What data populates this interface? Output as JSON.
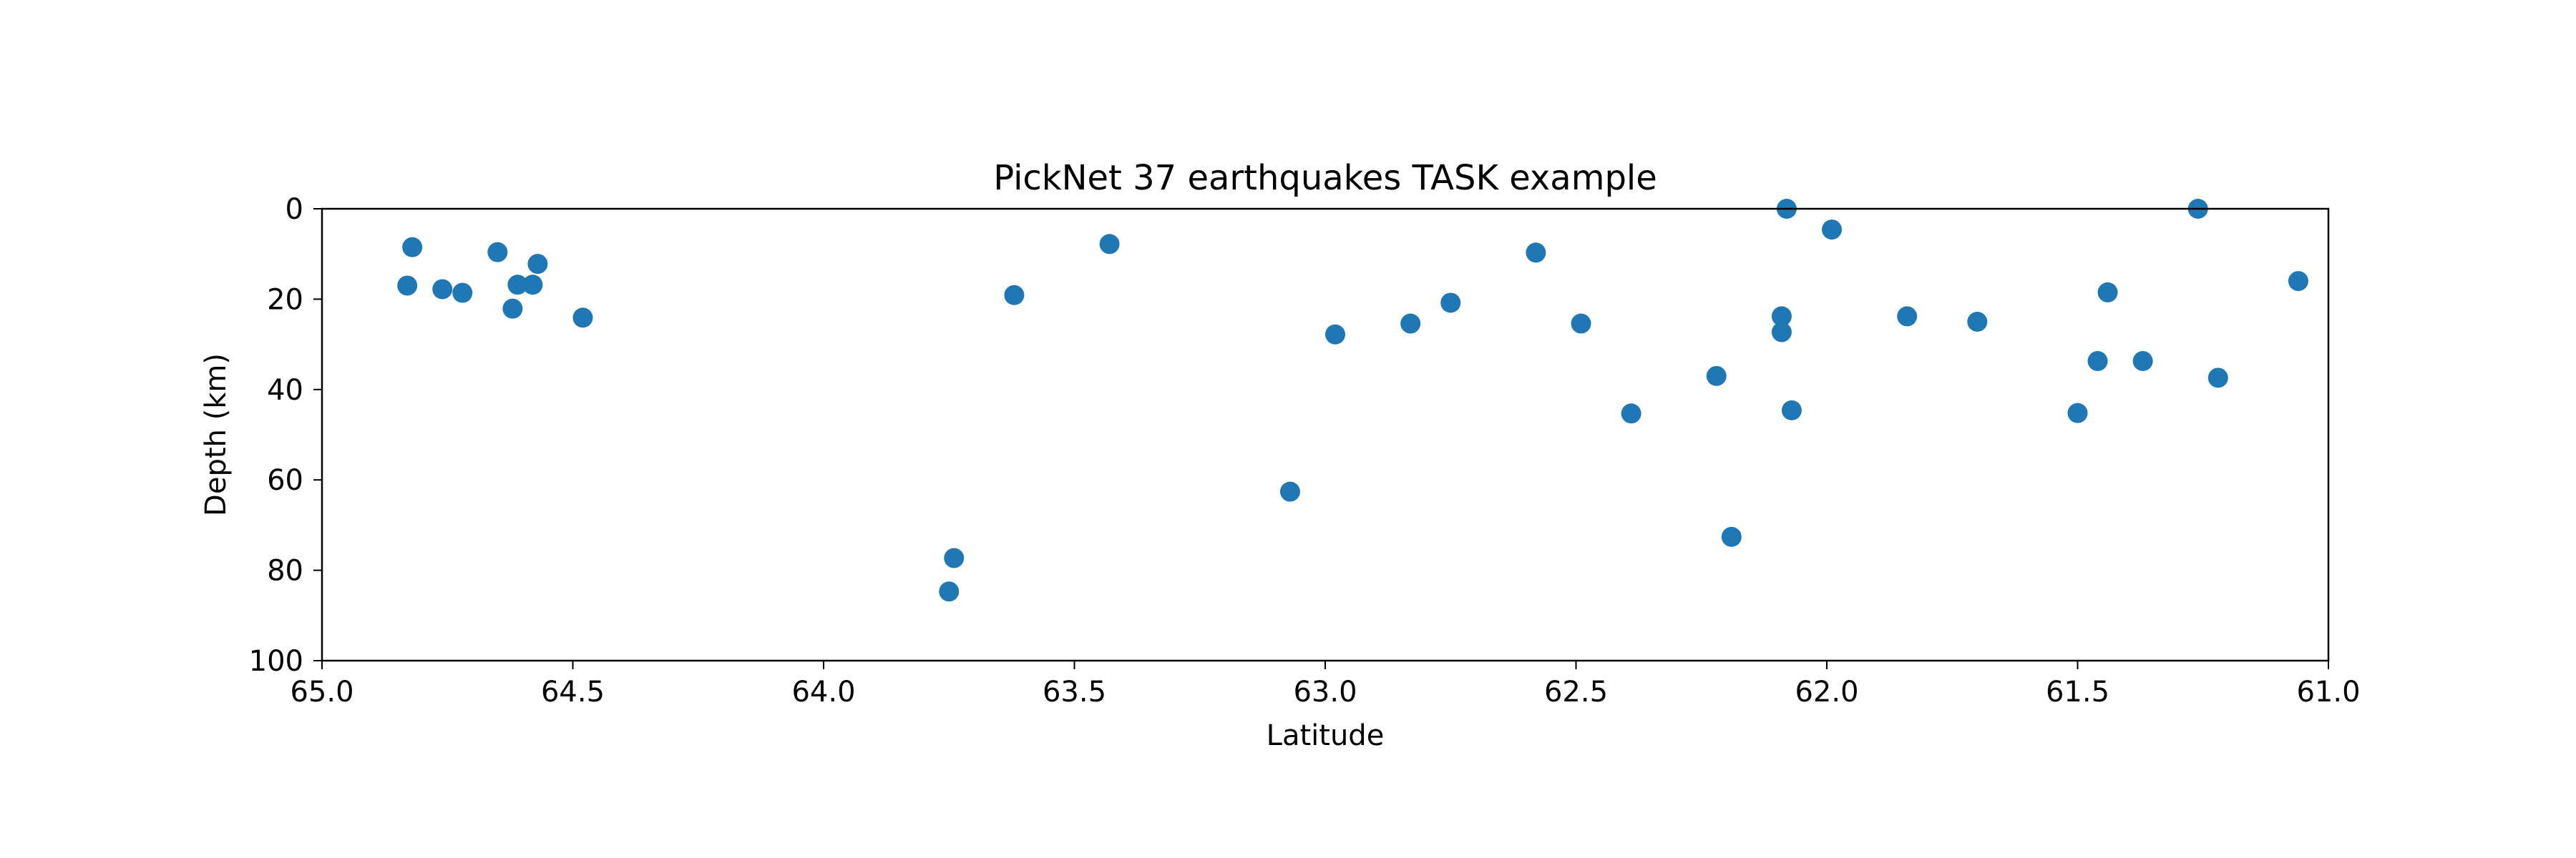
{
  "chart_data": {
    "type": "scatter",
    "title": "PickNet 37 earthquakes TASK example",
    "xlabel": "Latitude",
    "ylabel": "Depth (km)",
    "xlim": [
      65.0,
      61.0
    ],
    "ylim": [
      100,
      0
    ],
    "x_inverted": true,
    "y_inverted": true,
    "grid": false,
    "x_ticks": [
      65.0,
      64.5,
      64.0,
      63.5,
      63.0,
      62.5,
      62.0,
      61.5,
      61.0
    ],
    "x_tick_labels": [
      "65.0",
      "64.5",
      "64.0",
      "63.5",
      "63.0",
      "62.5",
      "62.0",
      "61.5",
      "61.0"
    ],
    "y_ticks": [
      0,
      20,
      40,
      60,
      80,
      100
    ],
    "y_tick_labels": [
      "0",
      "20",
      "40",
      "60",
      "80",
      "100"
    ],
    "marker_color": "#1f77b4",
    "points": [
      {
        "x": 64.82,
        "y": 8.5
      },
      {
        "x": 64.83,
        "y": 17.0
      },
      {
        "x": 64.76,
        "y": 17.8
      },
      {
        "x": 64.72,
        "y": 18.6
      },
      {
        "x": 64.65,
        "y": 9.6
      },
      {
        "x": 64.61,
        "y": 16.8
      },
      {
        "x": 64.58,
        "y": 16.8
      },
      {
        "x": 64.62,
        "y": 22.1
      },
      {
        "x": 64.57,
        "y": 12.2
      },
      {
        "x": 64.48,
        "y": 24.1
      },
      {
        "x": 63.74,
        "y": 77.3
      },
      {
        "x": 63.75,
        "y": 84.7
      },
      {
        "x": 63.62,
        "y": 19.1
      },
      {
        "x": 63.43,
        "y": 7.8
      },
      {
        "x": 63.07,
        "y": 62.6
      },
      {
        "x": 62.98,
        "y": 27.8
      },
      {
        "x": 62.83,
        "y": 25.4
      },
      {
        "x": 62.75,
        "y": 20.8
      },
      {
        "x": 62.58,
        "y": 9.7
      },
      {
        "x": 62.49,
        "y": 25.4
      },
      {
        "x": 62.39,
        "y": 45.3
      },
      {
        "x": 62.22,
        "y": 37.0
      },
      {
        "x": 62.19,
        "y": 72.6
      },
      {
        "x": 62.09,
        "y": 23.8
      },
      {
        "x": 62.09,
        "y": 27.3
      },
      {
        "x": 62.08,
        "y": 0.0
      },
      {
        "x": 62.07,
        "y": 44.6
      },
      {
        "x": 61.99,
        "y": 4.6
      },
      {
        "x": 61.84,
        "y": 23.8
      },
      {
        "x": 61.7,
        "y": 25.0
      },
      {
        "x": 61.5,
        "y": 45.2
      },
      {
        "x": 61.46,
        "y": 33.7
      },
      {
        "x": 61.44,
        "y": 18.5
      },
      {
        "x": 61.37,
        "y": 33.7
      },
      {
        "x": 61.26,
        "y": 0.0
      },
      {
        "x": 61.22,
        "y": 37.4
      },
      {
        "x": 61.06,
        "y": 16.0
      }
    ]
  }
}
